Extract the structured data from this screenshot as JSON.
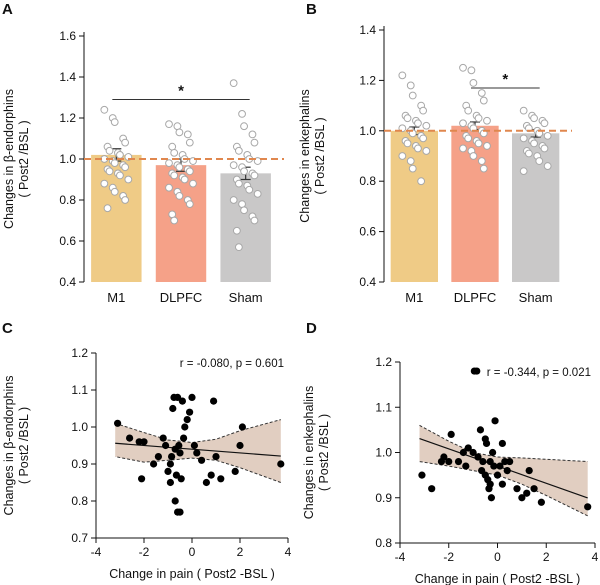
{
  "figure": {
    "background": "#ffffff"
  },
  "chart_data": [
    {
      "panel_label": "A",
      "type": "bar",
      "categories": [
        "M1",
        "DLPFC",
        "Sham"
      ],
      "values": [
        1.02,
        0.97,
        0.93
      ],
      "errors": [
        0.03,
        0.03,
        0.03
      ],
      "colors": [
        "#EFCB86",
        "#F5A188",
        "#C9C8C8"
      ],
      "points": [
        [
          1.24,
          1.2,
          1.18,
          1.1,
          1.08,
          1.06,
          1.04,
          1.03,
          1.02,
          1.01,
          1.0,
          0.99,
          0.98,
          0.97,
          0.96,
          0.95,
          0.94,
          0.93,
          0.92,
          0.9,
          0.88,
          0.86,
          0.84,
          0.82,
          0.8,
          0.76
        ],
        [
          1.17,
          1.16,
          1.13,
          1.12,
          1.08,
          1.06,
          1.03,
          1.02,
          1.0,
          0.99,
          0.98,
          0.97,
          0.96,
          0.95,
          0.94,
          0.93,
          0.92,
          0.91,
          0.9,
          0.88,
          0.86,
          0.84,
          0.82,
          0.8,
          0.78,
          0.73,
          0.7
        ],
        [
          1.37,
          1.22,
          1.16,
          1.12,
          1.08,
          1.06,
          1.04,
          1.02,
          1.0,
          0.99,
          0.97,
          0.96,
          0.94,
          0.93,
          0.92,
          0.9,
          0.88,
          0.87,
          0.85,
          0.83,
          0.8,
          0.78,
          0.75,
          0.72,
          0.7,
          0.65,
          0.57
        ]
      ],
      "reference_line": 1.0,
      "reference_color": "#E0874E",
      "significance": {
        "from": 0,
        "to": 2,
        "y": 1.29,
        "label": "*"
      },
      "ylabel_line1": "Changes in β-endorphins",
      "ylabel_line2": "( Post2 /BSL )",
      "ylim": [
        0.4,
        1.6
      ],
      "yticks": [
        0.4,
        0.6,
        0.8,
        1.0,
        1.2,
        1.4,
        1.6
      ],
      "ytick_labels": [
        "0.4",
        "0.6",
        "0.8",
        "1.0",
        "1.2",
        "1.4",
        "1.6"
      ]
    },
    {
      "panel_label": "B",
      "type": "bar",
      "categories": [
        "M1",
        "DLPFC",
        "Sham"
      ],
      "values": [
        1.0,
        1.02,
        0.99
      ],
      "errors": [
        0.015,
        0.015,
        0.015
      ],
      "colors": [
        "#EFCB86",
        "#F5A188",
        "#C9C8C8"
      ],
      "points": [
        [
          1.22,
          1.18,
          1.14,
          1.1,
          1.08,
          1.06,
          1.05,
          1.04,
          1.03,
          1.02,
          1.01,
          1.0,
          0.99,
          0.98,
          0.97,
          0.96,
          0.95,
          0.94,
          0.93,
          0.92,
          0.9,
          0.88,
          0.85,
          0.8
        ],
        [
          1.25,
          1.24,
          1.19,
          1.15,
          1.12,
          1.1,
          1.08,
          1.06,
          1.05,
          1.04,
          1.03,
          1.02,
          1.01,
          1.0,
          0.99,
          0.98,
          0.97,
          0.96,
          0.95,
          0.94,
          0.93,
          0.92,
          0.9,
          0.88,
          0.85
        ],
        [
          1.08,
          1.06,
          1.05,
          1.04,
          1.03,
          1.02,
          1.01,
          1.0,
          0.99,
          0.98,
          0.97,
          0.96,
          0.95,
          0.94,
          0.93,
          0.92,
          0.91,
          0.9,
          0.88,
          0.86,
          0.84
        ]
      ],
      "reference_line": 1.0,
      "reference_color": "#E0874E",
      "significance": {
        "from": 1,
        "to": 2,
        "y": 1.17,
        "label": "*"
      },
      "ylabel_line1": "Changes in enkephalins",
      "ylabel_line2": "( Post2 /BSL )",
      "ylim": [
        0.4,
        1.4
      ],
      "yticks": [
        0.4,
        0.6,
        0.8,
        1.0,
        1.2,
        1.4
      ],
      "ytick_labels": [
        "0.4",
        "0.6",
        "0.8",
        "1.0",
        "1.2",
        "1.4"
      ]
    },
    {
      "panel_label": "C",
      "type": "scatter",
      "points": [
        [
          -3.1,
          1.01
        ],
        [
          -2.6,
          0.97
        ],
        [
          -2.2,
          0.96
        ],
        [
          -2.0,
          0.96
        ],
        [
          -2.1,
          0.86
        ],
        [
          -1.6,
          0.9
        ],
        [
          -1.4,
          0.92
        ],
        [
          -1.2,
          0.97
        ],
        [
          -1.1,
          0.95
        ],
        [
          -1.0,
          0.88
        ],
        [
          -0.9,
          0.9
        ],
        [
          -0.85,
          0.92
        ],
        [
          -0.8,
          1.05
        ],
        [
          -0.75,
          1.08
        ],
        [
          -0.7,
          0.94
        ],
        [
          -0.65,
          0.87
        ],
        [
          -0.6,
          1.08
        ],
        [
          -0.55,
          0.95
        ],
        [
          -0.5,
          0.93
        ],
        [
          -0.45,
          0.86
        ],
        [
          -0.4,
          1.07
        ],
        [
          -0.35,
          0.97
        ],
        [
          -0.3,
          1.0
        ],
        [
          -0.2,
          1.02
        ],
        [
          -0.1,
          1.04
        ],
        [
          0.0,
          1.08
        ],
        [
          0.1,
          0.95
        ],
        [
          0.2,
          0.93
        ],
        [
          0.4,
          0.91
        ],
        [
          0.6,
          0.85
        ],
        [
          0.8,
          0.87
        ],
        [
          0.9,
          1.07
        ],
        [
          1.0,
          0.92
        ],
        [
          1.2,
          0.86
        ],
        [
          1.8,
          0.88
        ],
        [
          2.0,
          0.95
        ],
        [
          2.1,
          1.0
        ],
        [
          3.7,
          0.9
        ],
        [
          -0.7,
          0.8
        ],
        [
          -0.6,
          0.77
        ],
        [
          -0.5,
          0.77
        ],
        [
          -0.9,
          0.85
        ]
      ],
      "fit": {
        "intercept": 0.94,
        "slope": -0.005
      },
      "band": {
        "x": [
          -3.2,
          -2.0,
          -1.0,
          0.0,
          1.0,
          2.0,
          3.7
        ],
        "upper": [
          1.01,
          0.985,
          0.965,
          0.958,
          0.967,
          0.99,
          1.02
        ],
        "lower": [
          0.92,
          0.905,
          0.91,
          0.916,
          0.91,
          0.89,
          0.85
        ]
      },
      "band_color": "#DCC6B6",
      "stat_text": "r = -0.080, p = 0.601",
      "xlabel": "Change in pain ( Post2 -BSL )",
      "ylabel_line1": "Changes in β-endorphins",
      "ylabel_line2": "( Post2 /BSL )",
      "xlim": [
        -4,
        4
      ],
      "ylim": [
        0.7,
        1.2
      ],
      "xticks": [
        -4,
        -2,
        0,
        2,
        4
      ],
      "xtick_labels": [
        "-4",
        "-2",
        "0",
        "2",
        "4"
      ],
      "yticks": [
        0.7,
        0.8,
        0.9,
        1.0,
        1.1,
        1.2
      ],
      "ytick_labels": [
        "0.7",
        "0.8",
        "0.9",
        "1.0",
        "1.1",
        "1.2"
      ]
    },
    {
      "panel_label": "D",
      "type": "scatter",
      "points": [
        [
          -3.1,
          0.95
        ],
        [
          -2.7,
          0.92
        ],
        [
          -2.3,
          0.98
        ],
        [
          -2.2,
          0.99
        ],
        [
          -2.0,
          0.98
        ],
        [
          -1.9,
          1.04
        ],
        [
          -1.6,
          0.98
        ],
        [
          -1.4,
          1.0
        ],
        [
          -1.3,
          0.97
        ],
        [
          -1.2,
          1.01
        ],
        [
          -1.0,
          1.0
        ],
        [
          -0.95,
          1.18
        ],
        [
          -0.85,
          1.18
        ],
        [
          -0.8,
          0.99
        ],
        [
          -0.7,
          1.05
        ],
        [
          -0.65,
          0.96
        ],
        [
          -0.6,
          0.98
        ],
        [
          -0.5,
          0.95
        ],
        [
          -0.45,
          1.02
        ],
        [
          -0.4,
          0.94
        ],
        [
          -0.35,
          0.92
        ],
        [
          -0.3,
          0.98
        ],
        [
          -0.25,
          0.9
        ],
        [
          -0.2,
          1.0
        ],
        [
          -0.15,
          0.97
        ],
        [
          -0.1,
          1.07
        ],
        [
          0.0,
          0.95
        ],
        [
          0.1,
          0.97
        ],
        [
          0.2,
          0.93
        ],
        [
          0.3,
          0.98
        ],
        [
          0.4,
          0.96
        ],
        [
          0.5,
          0.98
        ],
        [
          0.8,
          0.92
        ],
        [
          1.0,
          0.9
        ],
        [
          1.2,
          0.91
        ],
        [
          1.3,
          0.96
        ],
        [
          1.5,
          0.92
        ],
        [
          1.8,
          0.89
        ],
        [
          3.7,
          0.88
        ],
        [
          -0.5,
          1.03
        ],
        [
          -0.3,
          0.93
        ],
        [
          0.2,
          1.02
        ]
      ],
      "fit": {
        "intercept": 0.97,
        "slope": -0.019
      },
      "band": {
        "x": [
          -3.2,
          -2.0,
          -1.0,
          0.0,
          1.0,
          2.0,
          3.7
        ],
        "upper": [
          1.06,
          1.025,
          1.0,
          0.99,
          0.988,
          0.985,
          0.98
        ],
        "lower": [
          0.98,
          0.97,
          0.96,
          0.95,
          0.93,
          0.905,
          0.86
        ]
      },
      "band_color": "#DCC6B6",
      "stat_text": "r = -0.344, p = 0.021",
      "xlabel": "Change in pain ( Post2 -BSL )",
      "ylabel_line1": "Changes in enkephalins",
      "ylabel_line2": "( Post2 /BSL )",
      "xlim": [
        -4,
        4
      ],
      "ylim": [
        0.8,
        1.2
      ],
      "xticks": [
        -4,
        -2,
        0,
        2,
        4
      ],
      "xtick_labels": [
        "-4",
        "-2",
        "0",
        "2",
        "4"
      ],
      "yticks": [
        0.8,
        0.9,
        1.0,
        1.1,
        1.2
      ],
      "ytick_labels": [
        "0.8",
        "0.9",
        "1.0",
        "1.1",
        "1.2"
      ]
    }
  ]
}
